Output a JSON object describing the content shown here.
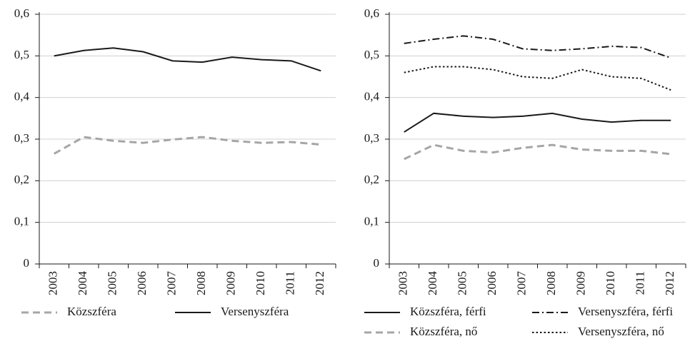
{
  "chart_data": [
    {
      "type": "line",
      "categories": [
        "2003",
        "2004",
        "2005",
        "2006",
        "2007",
        "2008",
        "2009",
        "2010",
        "2011",
        "2012"
      ],
      "ylim": [
        0,
        0.6
      ],
      "yticks": [
        0,
        {
          "value": 0.1,
          "label": "0,1"
        },
        {
          "value": 0.2,
          "label": "0,2"
        },
        {
          "value": 0.3,
          "label": "0,3"
        },
        {
          "value": 0.4,
          "label": "0,4"
        },
        {
          "value": 0.5,
          "label": "0,5"
        },
        {
          "value": 0.6,
          "label": "0,6"
        }
      ],
      "grid": true,
      "series": [
        {
          "name": "Közszféra",
          "color": "#a6a6a6",
          "dash": "dashed",
          "values": [
            0.265,
            0.305,
            0.296,
            0.291,
            0.299,
            0.305,
            0.296,
            0.291,
            0.293,
            0.287
          ]
        },
        {
          "name": "Versenyszféra",
          "color": "#1a1a1a",
          "dash": "solid",
          "values": [
            0.5,
            0.513,
            0.519,
            0.51,
            0.488,
            0.485,
            0.497,
            0.491,
            0.488,
            0.464
          ]
        }
      ]
    },
    {
      "type": "line",
      "categories": [
        "2003",
        "2004",
        "2005",
        "2006",
        "2007",
        "2008",
        "2009",
        "2010",
        "2011",
        "2012"
      ],
      "ylim": [
        0,
        0.6
      ],
      "yticks": [
        0,
        {
          "value": 0.1,
          "label": "0,1"
        },
        {
          "value": 0.2,
          "label": "0,2"
        },
        {
          "value": 0.3,
          "label": "0,3"
        },
        {
          "value": 0.4,
          "label": "0,4"
        },
        {
          "value": 0.5,
          "label": "0,5"
        },
        {
          "value": 0.6,
          "label": "0,6"
        }
      ],
      "grid": true,
      "series": [
        {
          "name": "Közszféra, férfi",
          "color": "#1a1a1a",
          "dash": "solid",
          "values": [
            0.317,
            0.362,
            0.355,
            0.352,
            0.355,
            0.362,
            0.348,
            0.341,
            0.345,
            0.345
          ]
        },
        {
          "name": "Versenyszféra, férfi",
          "color": "#1a1a1a",
          "dash": "dashdot",
          "values": [
            0.53,
            0.54,
            0.548,
            0.54,
            0.517,
            0.513,
            0.517,
            0.523,
            0.52,
            0.495
          ]
        },
        {
          "name": "Közszféra, nő",
          "color": "#a6a6a6",
          "dash": "dashed",
          "values": [
            0.252,
            0.286,
            0.272,
            0.268,
            0.279,
            0.286,
            0.275,
            0.272,
            0.272,
            0.264
          ]
        },
        {
          "name": "Versenyszféra, nő",
          "color": "#1a1a1a",
          "dash": "dotted",
          "values": [
            0.46,
            0.474,
            0.474,
            0.467,
            0.45,
            0.446,
            0.467,
            0.45,
            0.446,
            0.418
          ]
        }
      ]
    }
  ]
}
